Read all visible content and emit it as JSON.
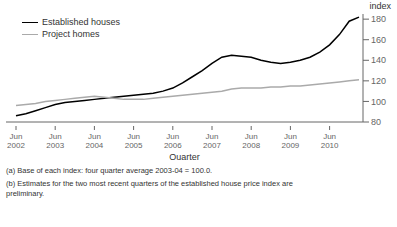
{
  "chart_data": {
    "type": "line",
    "x_label": "Quarter",
    "y_label": "index",
    "annotations": [
      "(a) Base of each index: four quarter average 2003-04 = 100.0.",
      "(b) Estimates for the two most recent quarters of the established house price index are\npreliminary."
    ],
    "legend": "upper left",
    "grid": false,
    "ylim": [
      80,
      185
    ],
    "yticks": [
      80,
      100,
      120,
      140,
      160,
      180
    ],
    "categories": [
      "Jun\n2002",
      null,
      null,
      null,
      "Jun\n2003",
      null,
      null,
      null,
      "Jun\n2004",
      null,
      null,
      null,
      "Jun\n2005",
      null,
      null,
      null,
      "Jun\n2006",
      null,
      null,
      null,
      "Jun\n2007",
      null,
      null,
      null,
      "Jun\n2008",
      null,
      null,
      null,
      "Jun\n2009",
      null,
      null,
      null,
      "Jun\n2010",
      null,
      null,
      null
    ],
    "series": [
      {
        "name": "Established houses",
        "color": "#000000",
        "values": [
          86,
          88,
          91,
          94,
          97,
          99,
          100,
          101,
          102,
          103,
          104,
          105,
          106,
          107,
          108,
          110,
          113,
          118,
          124,
          130,
          137,
          143,
          145,
          144,
          143,
          140,
          138,
          137,
          138,
          140,
          143,
          148,
          155,
          165,
          178,
          182
        ]
      },
      {
        "name": "Project homes",
        "color": "#aaaaaa",
        "values": [
          96,
          97,
          98,
          100,
          101,
          102,
          103,
          104,
          105,
          104,
          103,
          102,
          102,
          102,
          103,
          104,
          105,
          106,
          107,
          108,
          109,
          110,
          112,
          113,
          113,
          113,
          114,
          114,
          115,
          115,
          116,
          117,
          118,
          119,
          120,
          121
        ]
      }
    ]
  }
}
